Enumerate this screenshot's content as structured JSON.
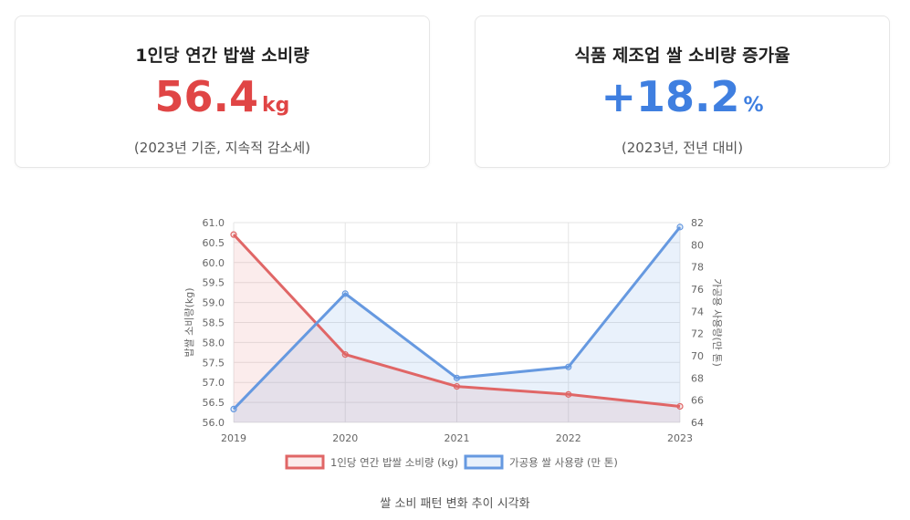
{
  "cards": [
    {
      "title": "1인당 연간 밥쌀 소비량",
      "value": "56.4",
      "unit": "kg",
      "note": "(2023년 기준, 지속적 감소세)",
      "color": "#e04545"
    },
    {
      "title": "식품 제조업 쌀 소비량 증가율",
      "value": "+18.2",
      "unit": "%",
      "note": "(2023년, 전년 대비)",
      "color": "#3f7fe0"
    }
  ],
  "caption": "쌀 소비 패턴 변화 추이 시각화",
  "chart_data": {
    "type": "line",
    "categories": [
      "2019",
      "2020",
      "2021",
      "2022",
      "2023"
    ],
    "series": [
      {
        "name": "1인당 연간 밥쌀 소비량 (kg)",
        "axis": "left",
        "values": [
          60.7,
          57.7,
          56.9,
          56.7,
          56.4
        ],
        "color": "#e06666",
        "fill": "rgba(224,102,102,0.12)"
      },
      {
        "name": "가공용 쌀 사용량 (만 톤)",
        "axis": "right",
        "values": [
          65.2,
          75.6,
          68.0,
          69.0,
          81.6
        ],
        "color": "#6699e0",
        "fill": "rgba(102,153,224,0.14)"
      }
    ],
    "ylabel_left": "밥쌀 소비량(kg)",
    "ylabel_right": "가공용 사용량(만 톤)",
    "ylim_left": [
      56.0,
      61.0
    ],
    "yticks_left": [
      "56.0",
      "56.5",
      "57.0",
      "57.5",
      "58.0",
      "58.5",
      "59.0",
      "59.5",
      "60.0",
      "60.5",
      "61.0"
    ],
    "ylim_right": [
      64,
      82
    ],
    "yticks_right": [
      "64",
      "66",
      "68",
      "70",
      "72",
      "74",
      "76",
      "78",
      "80",
      "82"
    ],
    "grid": true,
    "legend": "bottom"
  }
}
